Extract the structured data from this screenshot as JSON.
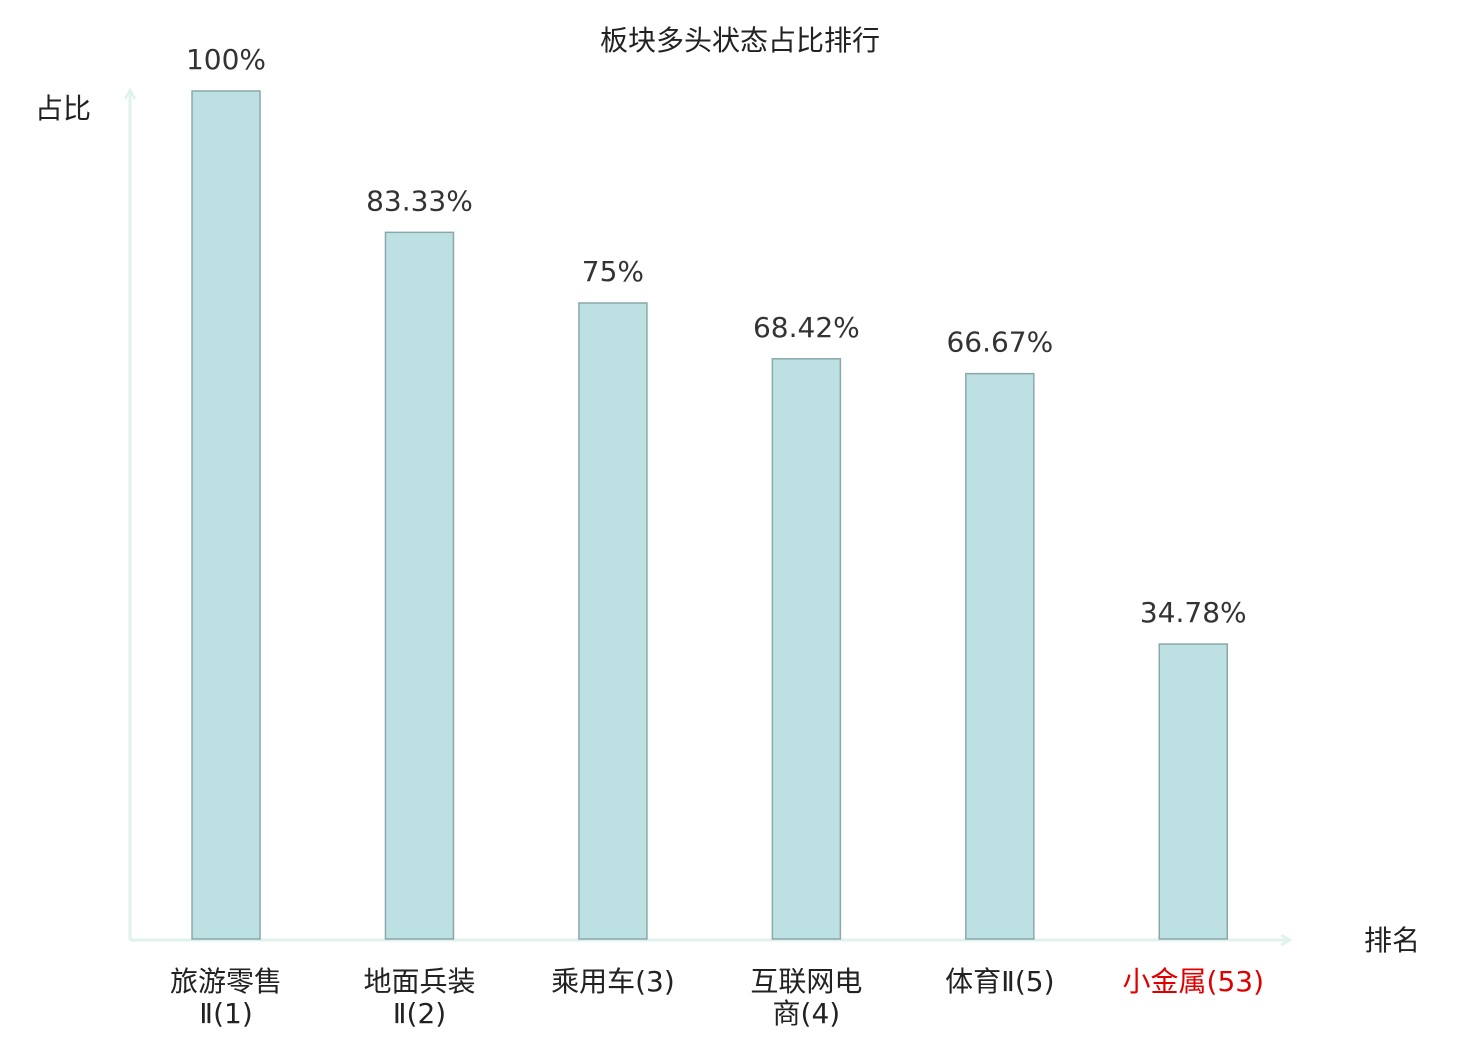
{
  "chart_data": {
    "type": "bar",
    "title": "板块多头状态占比排行",
    "y_label": "占比",
    "x_label": "排名",
    "categories": [
      "旅游零售Ⅱ(1)",
      "地面兵装Ⅱ(2)",
      "乘用车(3)",
      "互联网电商(4)",
      "体育Ⅱ(5)",
      "小金属(53)"
    ],
    "values": [
      100,
      83.33,
      75,
      68.42,
      66.67,
      34.78
    ],
    "value_labels": [
      "100%",
      "83.33%",
      "75%",
      "68.42%",
      "66.67%",
      "34.78%"
    ],
    "label_colors": [
      "#222222",
      "#222222",
      "#222222",
      "#222222",
      "#222222",
      "#e00000"
    ],
    "color": "#bde0e3",
    "edge_color": "#8aa8aa",
    "ylim": [
      0,
      100
    ]
  }
}
